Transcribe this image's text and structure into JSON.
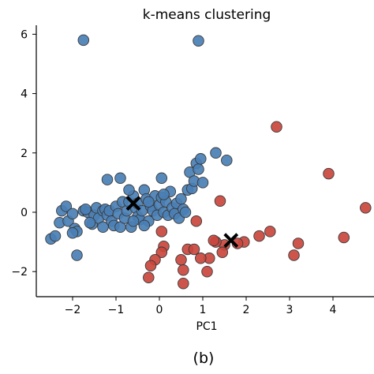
{
  "chart_data": {
    "type": "scatter",
    "title": "k-means clustering",
    "xlabel": "PC1",
    "ylabel": "",
    "caption": "(b)",
    "xlim": [
      -2.8,
      4.9
    ],
    "ylim": [
      -2.8,
      6.3
    ],
    "xticks": [
      -2,
      -1,
      0,
      1,
      2,
      3,
      4
    ],
    "yticks": [
      -2,
      0,
      2,
      4,
      6
    ],
    "grid": false,
    "colors": {
      "cluster1": "#4a7fb5",
      "cluster2": "#c9463d",
      "centroid": "#000000",
      "edge": "#3a3a3a"
    },
    "series": [
      {
        "color_key": "cluster1",
        "points": [
          [
            -1.75,
            5.8
          ],
          [
            0.9,
            5.78
          ],
          [
            -2.5,
            -0.9
          ],
          [
            -2.4,
            -0.8
          ],
          [
            -2.3,
            -0.35
          ],
          [
            -2.25,
            0.05
          ],
          [
            -2.15,
            0.2
          ],
          [
            -2.1,
            -0.3
          ],
          [
            -2.0,
            -0.05
          ],
          [
            -1.95,
            -0.55
          ],
          [
            -1.9,
            -0.65
          ],
          [
            -1.9,
            -1.45
          ],
          [
            -1.75,
            0.05
          ],
          [
            -1.65,
            0.0
          ],
          [
            -1.55,
            -0.4
          ],
          [
            -1.5,
            -0.1
          ],
          [
            -1.45,
            0.15
          ],
          [
            -1.4,
            -0.2
          ],
          [
            -1.3,
            -0.5
          ],
          [
            -1.3,
            0.05
          ],
          [
            -1.25,
            0.1
          ],
          [
            -1.2,
            -0.1
          ],
          [
            -1.15,
            0.05
          ],
          [
            -1.1,
            -0.3
          ],
          [
            -1.05,
            -0.45
          ],
          [
            -1.0,
            0.2
          ],
          [
            -0.95,
            -0.05
          ],
          [
            -0.9,
            -0.5
          ],
          [
            -0.85,
            0.35
          ],
          [
            -0.8,
            -0.2
          ],
          [
            -0.75,
            0.05
          ],
          [
            -0.7,
            0.35
          ],
          [
            -0.65,
            -0.5
          ],
          [
            -0.6,
            0.55
          ],
          [
            -0.55,
            0.15
          ],
          [
            -0.5,
            0.3
          ],
          [
            -0.5,
            -0.15
          ],
          [
            -0.45,
            -0.25
          ],
          [
            -0.4,
            0.05
          ],
          [
            -0.35,
            0.75
          ],
          [
            -0.3,
            0.45
          ],
          [
            -0.25,
            -0.3
          ],
          [
            -0.2,
            0.2
          ],
          [
            -0.15,
            0.05
          ],
          [
            -0.1,
            0.55
          ],
          [
            -0.05,
            -0.1
          ],
          [
            0.0,
            0.25
          ],
          [
            0.05,
            0.5
          ],
          [
            0.1,
            0.0
          ],
          [
            0.15,
            0.35
          ],
          [
            0.2,
            -0.1
          ],
          [
            0.25,
            0.7
          ],
          [
            0.3,
            0.15
          ],
          [
            0.35,
            -0.05
          ],
          [
            0.4,
            0.3
          ],
          [
            0.45,
            -0.2
          ],
          [
            0.5,
            0.45
          ],
          [
            0.55,
            0.1
          ],
          [
            0.6,
            0.0
          ],
          [
            0.65,
            0.75
          ],
          [
            0.7,
            1.35
          ],
          [
            0.75,
            0.8
          ],
          [
            0.8,
            1.05
          ],
          [
            0.85,
            1.65
          ],
          [
            0.9,
            1.45
          ],
          [
            0.95,
            1.8
          ],
          [
            1.0,
            1.0
          ],
          [
            1.3,
            2.0
          ],
          [
            1.55,
            1.75
          ],
          [
            -1.2,
            1.1
          ],
          [
            -0.9,
            1.15
          ],
          [
            -0.7,
            0.75
          ],
          [
            0.05,
            1.15
          ],
          [
            -0.35,
            -0.45
          ],
          [
            -0.6,
            -0.3
          ],
          [
            -1.6,
            -0.35
          ],
          [
            -2.0,
            -0.7
          ],
          [
            -1.7,
            0.1
          ],
          [
            -0.25,
            0.35
          ],
          [
            0.1,
            0.6
          ]
        ]
      },
      {
        "color_key": "cluster2",
        "points": [
          [
            2.7,
            2.88
          ],
          [
            3.9,
            1.3
          ],
          [
            4.75,
            0.15
          ],
          [
            1.4,
            0.38
          ],
          [
            0.85,
            -0.3
          ],
          [
            2.55,
            -0.65
          ],
          [
            2.3,
            -0.8
          ],
          [
            4.25,
            -0.85
          ],
          [
            3.2,
            -1.05
          ],
          [
            3.1,
            -1.45
          ],
          [
            1.95,
            -1.0
          ],
          [
            1.8,
            -1.05
          ],
          [
            1.5,
            -1.1
          ],
          [
            1.3,
            -1.0
          ],
          [
            1.45,
            -1.35
          ],
          [
            1.15,
            -1.55
          ],
          [
            0.95,
            -1.55
          ],
          [
            0.65,
            -1.25
          ],
          [
            0.5,
            -1.6
          ],
          [
            0.55,
            -1.95
          ],
          [
            0.1,
            -1.15
          ],
          [
            0.05,
            -1.35
          ],
          [
            0.05,
            -0.65
          ],
          [
            -0.1,
            -1.6
          ],
          [
            -0.2,
            -1.8
          ],
          [
            -0.25,
            -2.2
          ],
          [
            0.55,
            -2.4
          ],
          [
            1.1,
            -2.0
          ],
          [
            0.8,
            -1.25
          ],
          [
            1.25,
            -0.95
          ]
        ]
      }
    ],
    "centroids": [
      [
        -0.6,
        0.3
      ],
      [
        1.65,
        -0.95
      ]
    ]
  }
}
